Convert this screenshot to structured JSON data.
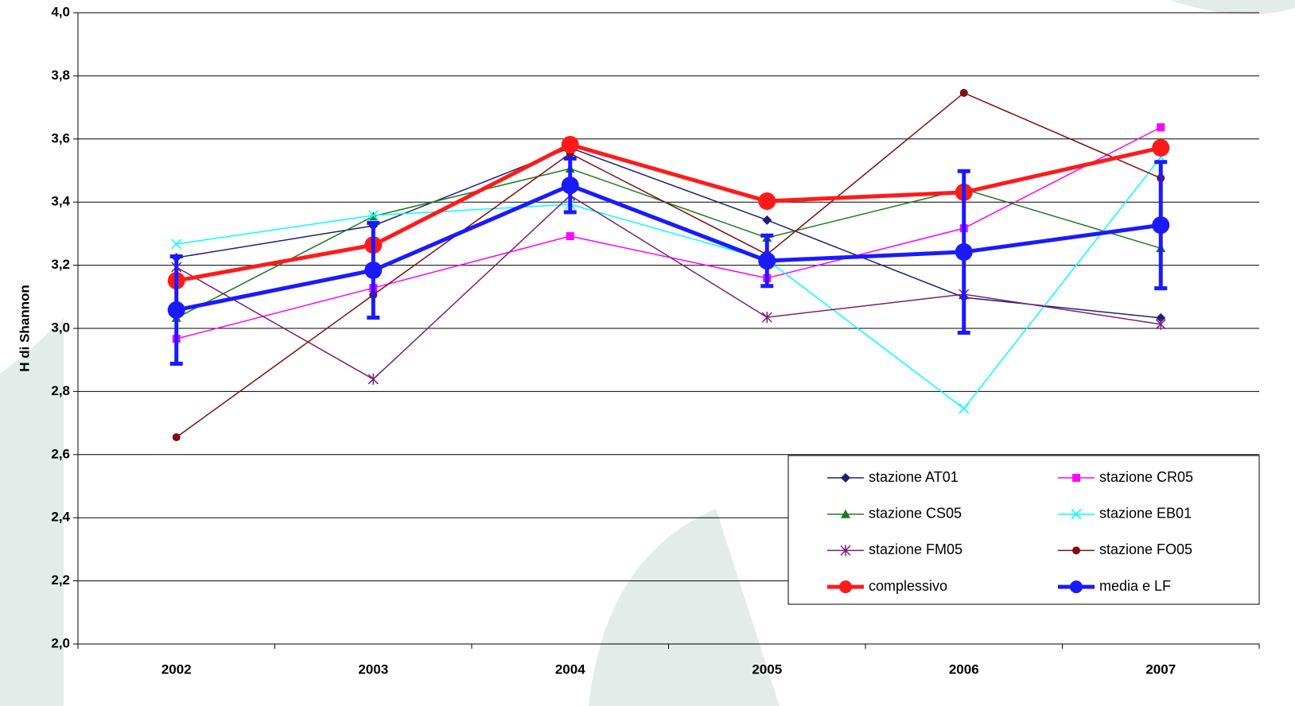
{
  "chart_data": {
    "type": "line",
    "y_label": "H di Shannon",
    "categories": [
      "2002",
      "2003",
      "2004",
      "2005",
      "2006",
      "2007"
    ],
    "ylim": [
      2.0,
      4.0
    ],
    "yticks": [
      {
        "value": 2.0,
        "label": "2,0"
      },
      {
        "value": 2.2,
        "label": "2,2"
      },
      {
        "value": 2.4,
        "label": "2,4"
      },
      {
        "value": 2.6,
        "label": "2,6"
      },
      {
        "value": 2.8,
        "label": "2,8"
      },
      {
        "value": 3.0,
        "label": "3,0"
      },
      {
        "value": 3.2,
        "label": "3,2"
      },
      {
        "value": 3.4,
        "label": "3,4"
      },
      {
        "value": 3.6,
        "label": "3,6"
      },
      {
        "value": 3.8,
        "label": "3,8"
      },
      {
        "value": 4.0,
        "label": "4,0"
      }
    ],
    "grid": true,
    "legend": "lower right",
    "series": [
      {
        "name": "stazione AT01",
        "color": "#1f1f7a",
        "marker": "diamond",
        "width": 1.5,
        "values": [
          3.224,
          3.325,
          3.572,
          3.343,
          3.098,
          3.033
        ]
      },
      {
        "name": "stazione CR05",
        "color": "#ff00ff",
        "marker": "square",
        "width": 1.5,
        "values": [
          2.967,
          3.128,
          3.292,
          3.159,
          3.317,
          3.637
        ]
      },
      {
        "name": "stazione CS05",
        "color": "#1e7a1e",
        "marker": "triangle",
        "width": 1.5,
        "values": [
          3.033,
          3.355,
          3.506,
          3.287,
          3.441,
          3.254
        ]
      },
      {
        "name": "stazione EB01",
        "color": "#00ffff",
        "marker": "x",
        "width": 1.5,
        "values": [
          3.267,
          3.358,
          3.393,
          3.217,
          2.746,
          3.542
        ]
      },
      {
        "name": "stazione FM05",
        "color": "#7a1f7a",
        "marker": "star",
        "width": 1.5,
        "values": [
          3.194,
          2.839,
          3.421,
          3.035,
          3.108,
          3.013
        ]
      },
      {
        "name": "stazione FO05",
        "color": "#7f0f0f",
        "marker": "circle",
        "width": 1.5,
        "values": [
          2.655,
          3.106,
          3.554,
          3.234,
          3.746,
          3.476
        ]
      },
      {
        "name": "complessivo",
        "color": "#ff1a1a",
        "marker": "bigcircle",
        "width": 5,
        "values": [
          3.151,
          3.264,
          3.582,
          3.403,
          3.431,
          3.572
        ]
      },
      {
        "name": "media e LF",
        "color": "#1a1aff",
        "marker": "bigcircle",
        "width": 5,
        "values": [
          3.058,
          3.184,
          3.453,
          3.214,
          3.242,
          3.327
        ],
        "errors": [
          0.17,
          0.15,
          0.085,
          0.08,
          0.256,
          0.2
        ]
      }
    ]
  }
}
